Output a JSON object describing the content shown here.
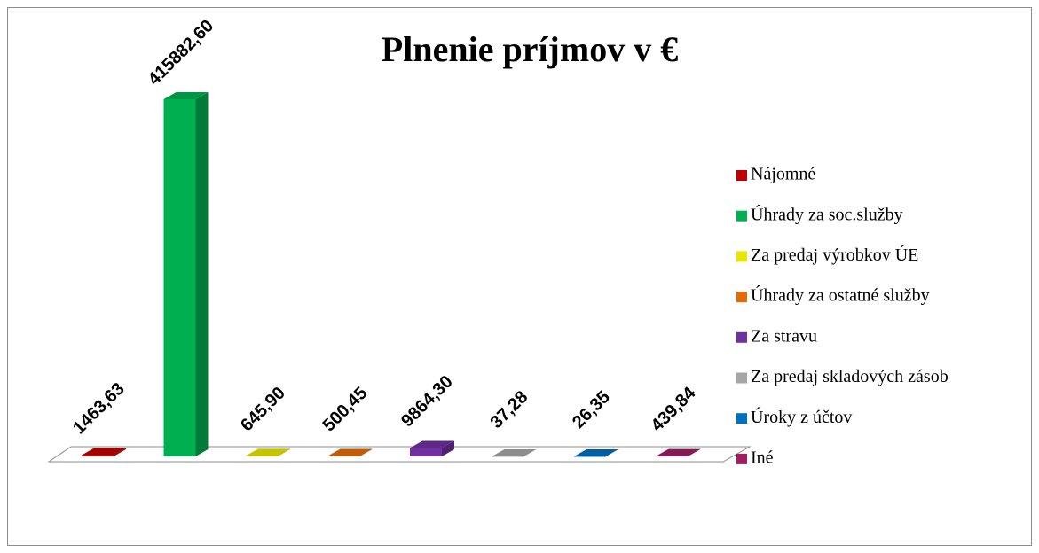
{
  "chart_data": {
    "type": "bar3d",
    "title": "Plnenie príjmov  v €",
    "ylim": [
      0,
      420000
    ],
    "series": [
      {
        "name": "Nájomné",
        "color": "#c00000",
        "values": [
          1463.63
        ],
        "value_labels": [
          "1463,63"
        ]
      },
      {
        "name": "Úhrady za soc.služby",
        "color": "#00b050",
        "values": [
          415882.6
        ],
        "value_labels": [
          "415882,60"
        ]
      },
      {
        "name": "Za predaj výrobkov ÚE",
        "color": "#e6e600",
        "values": [
          645.9
        ],
        "value_labels": [
          "645,90"
        ]
      },
      {
        "name": "Úhrady za ostatné služby",
        "color": "#e36c09",
        "values": [
          500.45
        ],
        "value_labels": [
          "500,45"
        ]
      },
      {
        "name": "Za stravu",
        "color": "#7030a0",
        "values": [
          9864.3
        ],
        "value_labels": [
          "9864,30"
        ]
      },
      {
        "name": "Za predaj skladových zásob",
        "color": "#a6a6a6",
        "values": [
          37.28
        ],
        "value_labels": [
          "37,28"
        ]
      },
      {
        "name": "Úroky z účtov",
        "color": "#0070c0",
        "values": [
          26.35
        ],
        "value_labels": [
          "26,35"
        ]
      },
      {
        "name": "Iné",
        "color": "#9e1f63",
        "values": [
          439.84
        ],
        "value_labels": [
          "439,84"
        ]
      }
    ]
  }
}
